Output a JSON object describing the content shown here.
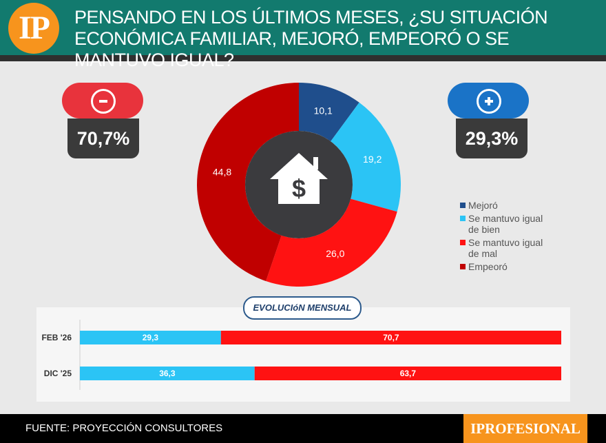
{
  "header": {
    "logo": "IP",
    "title": "PENSANDO EN LOS ÚLTIMOS MESES, ¿SU SITUACIÓN ECONÓMICA FAMILIAR, MEJORÓ, EMPEORÓ O SE MANTUVO IGUAL?"
  },
  "summary": {
    "negative_pct": "70,7%",
    "positive_pct": "29,3%"
  },
  "colors": {
    "mejoro": "#1f4e8c",
    "igual_bien": "#2bc4f5",
    "igual_mal": "#ff1212",
    "empeoro": "#c00000"
  },
  "chart_data": [
    {
      "type": "pie",
      "title": "",
      "categories": [
        "Mejoró",
        "Se mantuvo igual de bien",
        "Se mantuvo igual de mal",
        "Empeoró"
      ],
      "values": [
        10.1,
        19.2,
        26.0,
        44.8
      ],
      "labels": [
        "10,1",
        "19,2",
        "26,0",
        "44,8"
      ],
      "legend": [
        {
          "line1": "Mejoró",
          "line2": ""
        },
        {
          "line1": "Se mantuvo igual",
          "line2": "de bien"
        },
        {
          "line1": "Se mantuvo igual",
          "line2": "de mal"
        },
        {
          "line1": "Empeoró",
          "line2": ""
        }
      ],
      "legend_position": "right"
    },
    {
      "type": "bar",
      "title": "EVOLUCIóN MENSUAL",
      "orientation": "horizontal-stacked",
      "categories": [
        "FEB '26",
        "DIC '25"
      ],
      "series": [
        {
          "name": "positivo",
          "values": [
            29.3,
            36.3
          ],
          "labels": [
            "29,3",
            "36,3"
          ]
        },
        {
          "name": "negativo",
          "values": [
            70.7,
            63.7
          ],
          "labels": [
            "70,7",
            "63,7"
          ]
        }
      ],
      "xlim": [
        0,
        100
      ]
    }
  ],
  "footer": {
    "source": "FUENTE: PROYECCIÓN CONSULTORES",
    "brand": "IPROFESIONAL"
  }
}
